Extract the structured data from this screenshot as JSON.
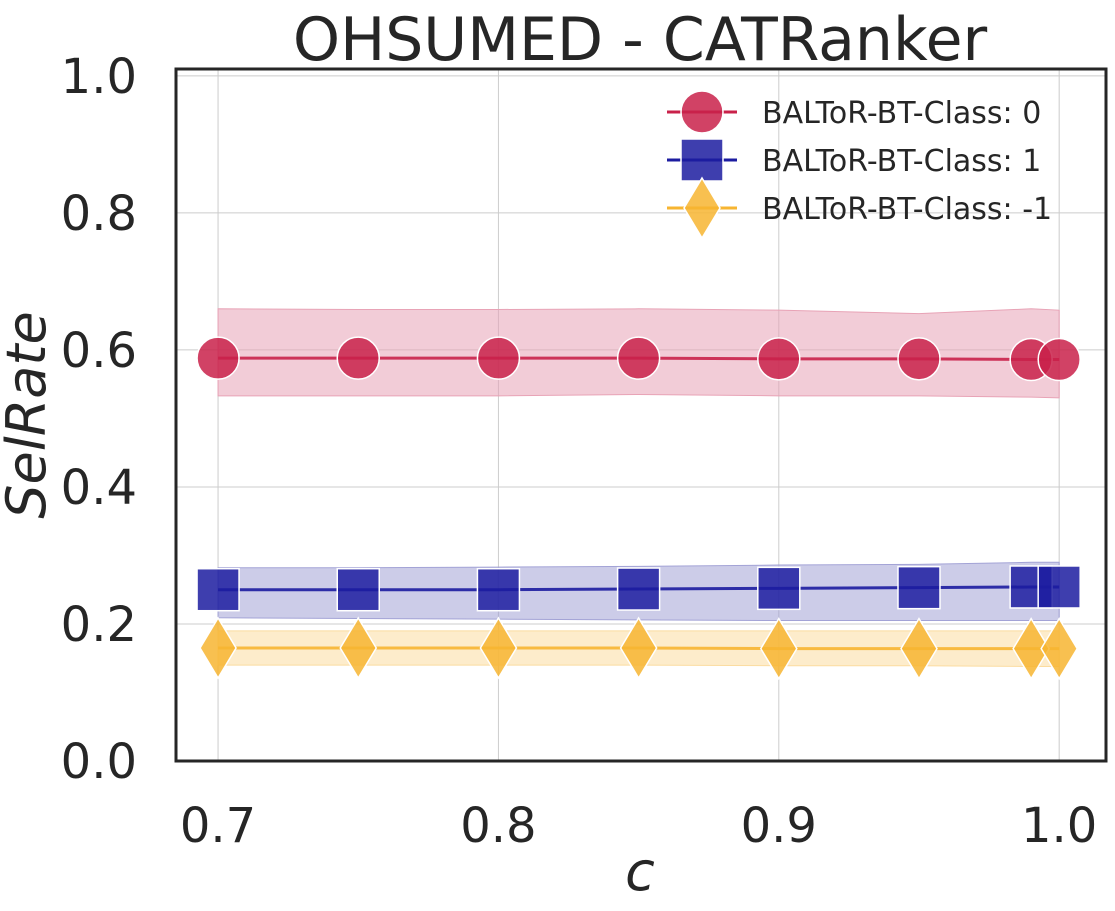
{
  "chart_data": {
    "type": "line",
    "title": "OHSUMED - CATRanker",
    "xlabel": "c",
    "ylabel": "SelRate",
    "xlim": [
      0.685,
      1.0167
    ],
    "ylim": [
      0.0,
      1.01
    ],
    "x_ticks": [
      0.7,
      0.8,
      0.9,
      1.0
    ],
    "x_tick_labels": [
      "0.7",
      "0.8",
      "0.9",
      "1.0"
    ],
    "y_ticks": [
      0.0,
      0.2,
      0.4,
      0.6,
      0.8,
      1.0
    ],
    "y_tick_labels": [
      "0.0",
      "0.2",
      "0.4",
      "0.6",
      "0.8",
      "1.0"
    ],
    "grid": true,
    "legend_position": "top-right",
    "x": [
      0.7,
      0.75,
      0.8,
      0.85,
      0.9,
      0.95,
      0.99,
      1.0
    ],
    "series": [
      {
        "name": "BALToR-BT-Class: 0",
        "marker": "circle",
        "color": "#c9214a",
        "band_color": "#e8a3b6",
        "values": [
          0.588,
          0.588,
          0.588,
          0.588,
          0.587,
          0.587,
          0.586,
          0.586
        ],
        "lower": [
          0.533,
          0.533,
          0.533,
          0.535,
          0.533,
          0.533,
          0.531,
          0.53
        ],
        "upper": [
          0.66,
          0.659,
          0.659,
          0.66,
          0.658,
          0.653,
          0.66,
          0.658
        ]
      },
      {
        "name": "BALToR-BT-Class: 1",
        "marker": "square",
        "color": "#1c1ca0",
        "band_color": "#a3a3d6",
        "values": [
          0.25,
          0.25,
          0.25,
          0.251,
          0.252,
          0.253,
          0.254,
          0.254
        ],
        "lower": [
          0.209,
          0.208,
          0.207,
          0.206,
          0.205,
          0.205,
          0.205,
          0.205
        ],
        "upper": [
          0.282,
          0.282,
          0.283,
          0.284,
          0.286,
          0.287,
          0.29,
          0.29
        ]
      },
      {
        "name": "BALToR-BT-Class: -1",
        "marker": "diamond",
        "color": "#f7b531",
        "band_color": "#fbdca0",
        "values": [
          0.165,
          0.165,
          0.165,
          0.165,
          0.164,
          0.164,
          0.164,
          0.164
        ],
        "lower": [
          0.14,
          0.14,
          0.14,
          0.14,
          0.139,
          0.139,
          0.138,
          0.138
        ],
        "upper": [
          0.19,
          0.19,
          0.19,
          0.19,
          0.19,
          0.19,
          0.19,
          0.19
        ]
      }
    ]
  }
}
